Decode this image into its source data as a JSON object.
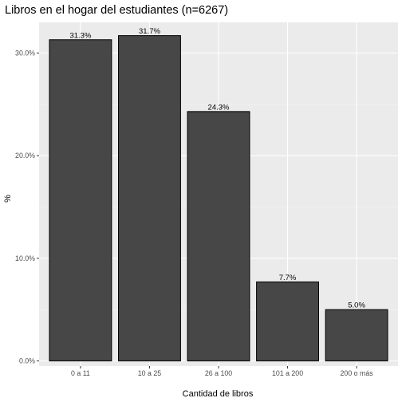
{
  "chart_data": {
    "type": "bar",
    "title": "Libros en el hogar del estudiantes (n=6267)",
    "xlabel": "Cantidad de libros",
    "ylabel": "%",
    "categories": [
      "0 a 11",
      "10 a 25",
      "26 a 100",
      "101 a 200",
      "200 o más"
    ],
    "values": [
      31.3,
      31.7,
      24.3,
      7.7,
      5.0
    ],
    "data_labels": [
      "31.3%",
      "31.7%",
      "24.3%",
      "7.7%",
      "5.0%"
    ],
    "y_ticks": [
      0,
      10,
      20,
      30
    ],
    "y_tick_labels": [
      "0.0%",
      "10.0%",
      "20.0%",
      "30.0%"
    ],
    "ylim": [
      0,
      33.3
    ],
    "grid": true,
    "legend": "none",
    "colors": {
      "bar_fill": "#474747",
      "bar_stroke": "#000000",
      "panel_bg": "#ebebeb",
      "grid_major": "#ffffff",
      "tick_text": "#4d4d4d"
    }
  }
}
